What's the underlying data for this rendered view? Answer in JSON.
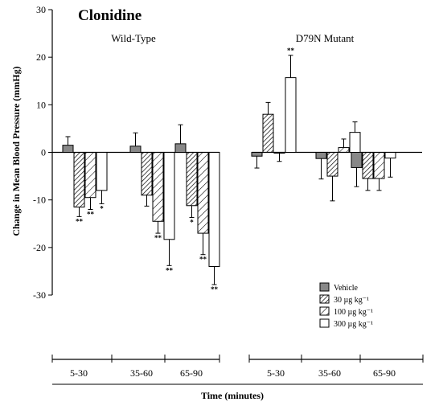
{
  "chart_data": {
    "type": "bar",
    "title": "Clonidine",
    "xlabel": "Time (minutes)",
    "ylabel": "Change in Mean Blood Pressure (mmHg)",
    "ylim": [
      -30,
      30
    ],
    "yticks": [
      30,
      20,
      10,
      0,
      -10,
      -20,
      -30
    ],
    "legend_position": "bottom-right",
    "series_names": [
      "Vehicle",
      "30 µg kg⁻¹",
      "100 µg kg⁻¹",
      "300 µg kg⁻¹"
    ],
    "panels": [
      {
        "name": "Wild-Type",
        "categories": [
          "5-30",
          "35-60",
          "65-90"
        ],
        "series": [
          {
            "name": "Vehicle",
            "values": [
              1.5,
              1.3,
              1.8
            ],
            "errors": [
              1.8,
              2.8,
              4.0
            ],
            "labels": [
              "",
              "",
              ""
            ]
          },
          {
            "name": "30 µg kg⁻¹",
            "values": [
              -11.5,
              -9.0,
              -11.2
            ],
            "errors": [
              2.0,
              2.3,
              2.5
            ],
            "labels": [
              "**",
              "",
              "*"
            ]
          },
          {
            "name": "100 µg kg⁻¹",
            "values": [
              -9.5,
              -14.5,
              -17.0
            ],
            "errors": [
              2.5,
              2.5,
              4.5
            ],
            "labels": [
              "**",
              "**",
              "**"
            ]
          },
          {
            "name": "300 µg kg⁻¹",
            "values": [
              -8.0,
              -18.3,
              -24.0
            ],
            "errors": [
              2.8,
              5.5,
              3.8
            ],
            "labels": [
              "*",
              "**",
              "**"
            ]
          }
        ]
      },
      {
        "name": "D79N Mutant",
        "categories": [
          "5-30",
          "35-60",
          "65-90"
        ],
        "series": [
          {
            "name": "Vehicle",
            "values": [
              -0.8,
              -1.3,
              -3.2
            ],
            "errors": [
              2.5,
              4.3,
              4.0
            ],
            "labels": [
              "",
              "",
              ""
            ]
          },
          {
            "name": "30 µg kg⁻¹",
            "values": [
              8.0,
              -5.0,
              -5.5
            ],
            "errors": [
              2.5,
              5.2,
              2.5
            ],
            "labels": [
              "",
              "",
              ""
            ]
          },
          {
            "name": "100 µg kg⁻¹",
            "values": [
              -0.1,
              1.0,
              -5.5
            ],
            "errors": [
              1.8,
              1.8,
              2.5
            ],
            "labels": [
              "",
              "",
              ""
            ]
          },
          {
            "name": "300 µg kg⁻¹",
            "values": [
              15.7,
              4.2,
              -1.2
            ],
            "errors": [
              4.7,
              2.2,
              4.0
            ],
            "labels": [
              "**",
              "",
              ""
            ]
          }
        ]
      }
    ]
  },
  "colors": {
    "vehicle_fill": "#888888",
    "bar_fill": "#ffffff",
    "stroke": "#000000"
  }
}
